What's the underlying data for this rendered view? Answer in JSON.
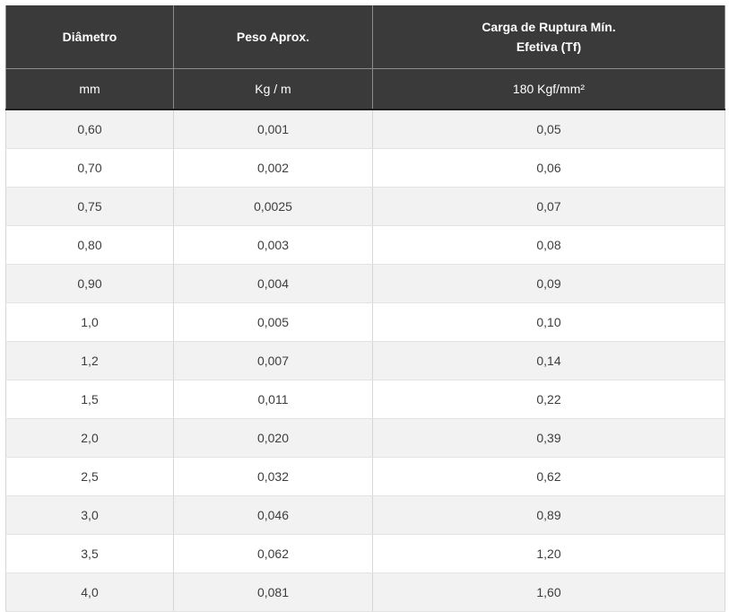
{
  "table": {
    "headers": {
      "diameter": "Diâmetro",
      "weight": "Peso Aprox.",
      "load_line1": "Carga de Ruptura Mín.",
      "load_line2": "Efetiva (Tf)"
    },
    "units": {
      "diameter": "mm",
      "weight": "Kg / m",
      "load": "180 Kgf/mm²"
    },
    "rows": [
      [
        "0,60",
        "0,001",
        "0,05"
      ],
      [
        "0,70",
        "0,002",
        "0,06"
      ],
      [
        "0,75",
        "0,0025",
        "0,07"
      ],
      [
        "0,80",
        "0,003",
        "0,08"
      ],
      [
        "0,90",
        "0,004",
        "0,09"
      ],
      [
        "1,0",
        "0,005",
        "0,10"
      ],
      [
        "1,2",
        "0,007",
        "0,14"
      ],
      [
        "1,5",
        "0,011",
        "0,22"
      ],
      [
        "2,0",
        "0,020",
        "0,39"
      ],
      [
        "2,5",
        "0,032",
        "0,62"
      ],
      [
        "3,0",
        "0,046",
        "0,89"
      ],
      [
        "3,5",
        "0,062",
        "1,20"
      ],
      [
        "4,0",
        "0,081",
        "1,60"
      ]
    ]
  }
}
